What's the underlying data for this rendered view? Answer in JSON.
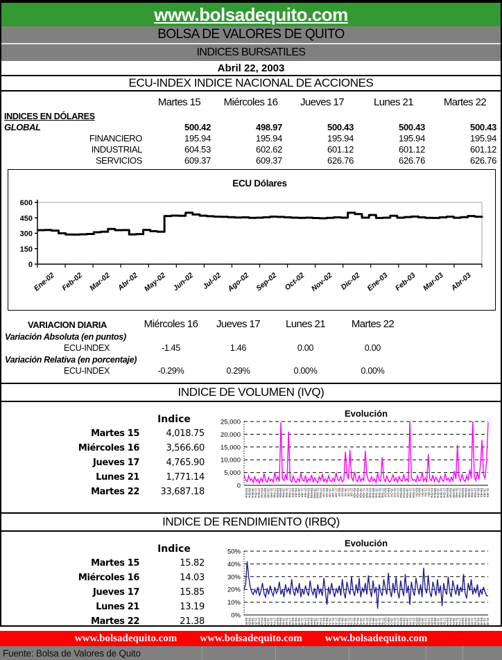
{
  "header": {
    "website": "www.bolsadequito.com",
    "org": "BOLSA DE VALORES DE QUITO",
    "subtitle": "INDICES BURSATILES",
    "date": "Abril 22, 2003",
    "green": "#339933",
    "gray": "#808080"
  },
  "index_section": {
    "title": "ECU-INDEX  INDICE NACIONAL DE ACCIONES",
    "columns": [
      "Martes 15",
      "Miércoles 16",
      "Jueves 17",
      "Lunes 21",
      "Martes 22"
    ],
    "group_label": "INDICES EN DÓLARES",
    "rows": [
      {
        "label": "GLOBAL",
        "bold": true,
        "values": [
          "500.42",
          "498.97",
          "500.43",
          "500.43",
          "500.43"
        ]
      },
      {
        "label": "FINANCIERO",
        "bold": false,
        "values": [
          "195.94",
          "195.94",
          "195.94",
          "195.94",
          "195.94"
        ]
      },
      {
        "label": "INDUSTRIAL",
        "bold": false,
        "values": [
          "604.53",
          "602.62",
          "601.12",
          "601.12",
          "601.12"
        ]
      },
      {
        "label": "SERVICIOS",
        "bold": false,
        "values": [
          "609.37",
          "609.37",
          "626.76",
          "626.76",
          "626.76"
        ]
      }
    ]
  },
  "variation_section": {
    "title": "VARIACION DIARIA",
    "columns": [
      "Miércoles 16",
      "Jueves 17",
      "Lunes 21",
      "Martes 22"
    ],
    "groups": [
      {
        "label": "Variación Absoluta (en puntos)",
        "row_label": "ECU-INDEX",
        "values": [
          "-1.45",
          "1.46",
          "0.00",
          "0.00"
        ]
      },
      {
        "label": "Variación Relativa (en porcentaje)",
        "row_label": "ECU-INDEX",
        "values": [
          "-0.29%",
          "0.29%",
          "0.00%",
          "0.00%"
        ]
      }
    ]
  },
  "volume_section": {
    "title": "INDICE DE VOLUMEN (IVQ)",
    "table_header": "Indice",
    "rows": [
      [
        "Martes 15",
        "4,018.75"
      ],
      [
        "Miércoles 16",
        "3,566.60"
      ],
      [
        "Jueves 17",
        "4,765.90"
      ],
      [
        "Lunes 21",
        "1,771.14"
      ],
      [
        "Martes 22",
        "33,687.18"
      ]
    ]
  },
  "yield_section": {
    "title": "INDICE DE RENDIMIENTO (IRBQ)",
    "table_header": "Indice",
    "rows": [
      [
        "Martes 15",
        "15.82"
      ],
      [
        "Miércoles 16",
        "14.03"
      ],
      [
        "Jueves 17",
        "15.85"
      ],
      [
        "Lunes 21",
        "13.19"
      ],
      [
        "Martes 22",
        "21.38"
      ]
    ]
  },
  "footer": {
    "links": [
      "www.bolsadequito.com",
      "www.bolsadequito.com",
      "www.bolsadequito.com"
    ],
    "source": "Fuente: Bolsa de Valores de Quito",
    "red": "#ff0000",
    "gray": "#808080"
  },
  "chart_data": [
    {
      "id": "ecu",
      "type": "line",
      "title": "ECU Dólares",
      "ylim": [
        0,
        600
      ],
      "yticks": [
        0,
        150,
        300,
        450,
        600
      ],
      "ytick_labels": [
        "0",
        "150",
        "300",
        "450",
        "600"
      ],
      "x_tick_labels": [
        "Ene-02",
        "Feb-02",
        "Mar-02",
        "Abr-02",
        "May-02",
        "Jun-02",
        "Jul-02",
        "Ago-02",
        "Sep-02",
        "Oct-02",
        "Nov-02",
        "Dic-02",
        "Ene-03",
        "Feb-03",
        "Mar-03",
        "Abr-03"
      ],
      "line_color": "#000000",
      "values": [
        330,
        332,
        326,
        300,
        288,
        287,
        290,
        293,
        310,
        315,
        342,
        330,
        331,
        289,
        292,
        333,
        320,
        315,
        468,
        472,
        470,
        500,
        483,
        471,
        466,
        462,
        460,
        457,
        453,
        455,
        450,
        452,
        456,
        462,
        459,
        455,
        452,
        450,
        452,
        448,
        446,
        450,
        455,
        452,
        500,
        487,
        452,
        478,
        449,
        452,
        470,
        452,
        458,
        463,
        455,
        450,
        449,
        455,
        462,
        451,
        457,
        468,
        461,
        469
      ]
    },
    {
      "id": "ivq",
      "type": "line",
      "title": "Evolución",
      "ylim": [
        0,
        25000
      ],
      "yticks": [
        0,
        5000,
        10000,
        15000,
        20000,
        25000
      ],
      "ytick_labels": [
        "0",
        "5,000",
        "10,000",
        "15,000",
        "20,000",
        "25,000"
      ],
      "line_color": "#FF00FF",
      "x_labels": [
        "03-Ene",
        "09-Ene",
        "15-Ene",
        "21-Ene",
        "27-Ene",
        "03-Feb",
        "09-Feb",
        "15-Feb",
        "21-Feb",
        "27-Feb",
        "03-Mar",
        "09-Mar",
        "15-Mar",
        "21-Mar",
        "27-Mar",
        "03-Abr",
        "09-Abr",
        "15-Abr",
        "21-Abr",
        "27-Abr",
        "03-May",
        "09-May",
        "15-May",
        "21-May",
        "27-May",
        "03-Jun",
        "09-Jun",
        "15-Jun",
        "21-Jun",
        "27-Jun",
        "03-Jul",
        "09-Jul",
        "15-Jul",
        "21-Jul",
        "27-Jul",
        "03-Ago",
        "09-Ago",
        "15-Ago",
        "21-Ago",
        "27-Ago",
        "03-Sep",
        "09-Sep",
        "15-Sep",
        "21-Sep",
        "27-Sep",
        "03-Oct",
        "09-Oct",
        "15-Oct",
        "21-Oct",
        "27-Oct",
        "03-Nov",
        "09-Nov",
        "15-Nov",
        "21-Nov",
        "27-Nov",
        "03-Dic",
        "09-Dic",
        "15-Dic",
        "21-Dic",
        "27-Dic",
        "03-Ene",
        "09-Ene",
        "15-Ene",
        "21-Ene",
        "27-Ene",
        "03-Feb",
        "09-Feb",
        "15-Feb",
        "21-Feb",
        "27-Feb",
        "03-Mar",
        "09-Mar",
        "15-Mar",
        "21-Mar",
        "27-Mar",
        "03-Abr",
        "09-Abr",
        "15-Abr",
        "21-Abr"
      ],
      "values": [
        4200,
        2100,
        1500,
        3800,
        1900,
        2600,
        1100,
        3300,
        1600,
        2400,
        900,
        2800,
        1400,
        4600,
        2000,
        1200,
        3100,
        1700,
        2500,
        1300,
        5200,
        1900,
        3400,
        1500,
        24800,
        2600,
        1800,
        4200,
        2100,
        21000,
        2400,
        1300,
        3600,
        1900,
        1100,
        2700,
        1500,
        4800,
        2200,
        1600,
        3900,
        1200,
        2500,
        1800,
        4100,
        1400,
        2900,
        1700,
        1000,
        3300,
        2000,
        4400,
        1500,
        2600,
        1200,
        3700,
        1900,
        1400,
        2800,
        1600,
        4900,
        2300,
        1700,
        3500,
        1300,
        2100,
        13200,
        4600,
        2400,
        13800,
        3100,
        1800,
        5300,
        2200,
        1500,
        3900,
        1600,
        2700,
        1900,
        13500,
        4200,
        2000,
        1400,
        3300,
        1700,
        2500,
        1100,
        4700,
        2100,
        1600,
        11000,
        2800,
        1500,
        3600,
        1900,
        1300,
        2400,
        4100,
        1700,
        2900,
        1200,
        3400,
        2000,
        1600,
        4300,
        1800,
        2600,
        1500,
        25000,
        3200,
        1900,
        2300,
        1400,
        3800,
        1700,
        2100,
        5100,
        1600,
        2900,
        1300,
        12200,
        2500,
        1800,
        4000,
        1500,
        3100,
        1900,
        1200,
        3500,
        2200,
        1600,
        4500,
        2000,
        2700,
        1400,
        3200,
        1800,
        5600,
        2400,
        15800,
        3000,
        1700,
        4200,
        2100,
        1500,
        3700,
        1900,
        6200,
        2600,
        25000,
        3400,
        1800,
        5000,
        2300,
        8200,
        17800,
        4100,
        2800,
        9500,
        24600
      ]
    },
    {
      "id": "irbq",
      "type": "line",
      "title": "Evolución",
      "ylim": [
        0,
        50
      ],
      "yticks": [
        0,
        10,
        20,
        30,
        40,
        50
      ],
      "ytick_labels": [
        "0%",
        "10%",
        "20%",
        "30%",
        "40%",
        "50%"
      ],
      "line_color": "#1F1F8F",
      "values": [
        20,
        24,
        42,
        30,
        22,
        18,
        16,
        20,
        17,
        22,
        15,
        19,
        25,
        17,
        14,
        21,
        16,
        23,
        18,
        15,
        22,
        17,
        19,
        26,
        16,
        20,
        14,
        24,
        18,
        21,
        16,
        28,
        19,
        15,
        22,
        17,
        25,
        14,
        20,
        16,
        23,
        18,
        15,
        27,
        19,
        16,
        21,
        13,
        24,
        17,
        20,
        15,
        29,
        18,
        8,
        22,
        16,
        25,
        19,
        14,
        21,
        17,
        23,
        15,
        28,
        18,
        13,
        26,
        20,
        16,
        30,
        19,
        15,
        24,
        17,
        29,
        14,
        21,
        18,
        25,
        16,
        31,
        20,
        14,
        27,
        17,
        22,
        5,
        24,
        18,
        15,
        28,
        21,
        16,
        33,
        19,
        14,
        25,
        17,
        30,
        18,
        13,
        27,
        20,
        15,
        32,
        17,
        23,
        8,
        26,
        19,
        15,
        29,
        22,
        16,
        24,
        14,
        37,
        20,
        17,
        31,
        18,
        14,
        26,
        21,
        15,
        28,
        17,
        23,
        7,
        25,
        19,
        16,
        30,
        18,
        14,
        27,
        21,
        16,
        24,
        15,
        22,
        18,
        32,
        17,
        13,
        25,
        19,
        28,
        16,
        21,
        17,
        24,
        14,
        20,
        16,
        22,
        18,
        15,
        15
      ]
    }
  ]
}
